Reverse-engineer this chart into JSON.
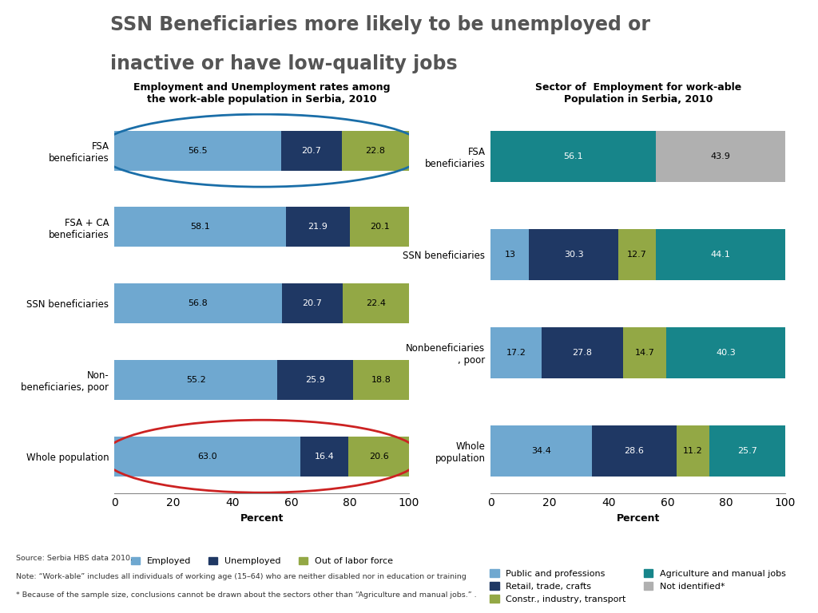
{
  "title_line1": "SSN Beneficiaries more likely to be unemployed or",
  "title_line2": "inactive or have low-quality jobs",
  "left_chart": {
    "title": "Employment and Unemployment rates among\nthe work-able population in Serbia, 2010",
    "categories": [
      "FSA\nbeneficiaries",
      "FSA + CA\nbeneficiaries",
      "SSN beneficiaries",
      "Non-\nbeneficiaries, poor",
      "Whole population"
    ],
    "employed": [
      56.5,
      58.1,
      56.8,
      55.2,
      63.0
    ],
    "unemployed": [
      20.7,
      21.9,
      20.7,
      25.9,
      16.4
    ],
    "out_of_labor": [
      22.8,
      20.1,
      22.4,
      18.8,
      20.6
    ],
    "color_employed": "#6fa8d0",
    "color_unemployed": "#1f3864",
    "color_out_of_labor": "#93a845",
    "xlabel": "Percent",
    "xlim": [
      0,
      100
    ],
    "xticks": [
      0,
      20,
      40,
      60,
      80,
      100
    ],
    "legend": [
      "Employed",
      "Unemployed",
      "Out of labor force"
    ],
    "red_circle_row": 4,
    "blue_circle_row": 0
  },
  "right_chart": {
    "title": "Sector of  Employment for work-able\nPopulation in Serbia, 2010",
    "categories": [
      "FSA\nbeneficiaries",
      "SSN beneficiaries",
      "Nonbeneficiaries\n, poor",
      "Whole\npopulation"
    ],
    "public": [
      0.0,
      13.0,
      17.2,
      34.4
    ],
    "retail": [
      0.0,
      30.3,
      27.8,
      28.6
    ],
    "constr": [
      0.0,
      12.7,
      14.7,
      11.2
    ],
    "agri": [
      56.1,
      44.1,
      40.3,
      25.7
    ],
    "not_id": [
      43.9,
      0.0,
      0.0,
      0.0
    ],
    "color_public": "#6fa8d0",
    "color_retail": "#1f3864",
    "color_constr": "#93a845",
    "color_agri": "#17858a",
    "color_not_id": "#b0b0b0",
    "xlabel": "Percent",
    "xlim": [
      0,
      100
    ],
    "xticks": [
      0,
      20,
      40,
      60,
      80,
      100
    ],
    "legend": [
      "Public and professions",
      "Retail, trade, crafts",
      "Constr., industry, transport",
      "Agriculture and manual jobs",
      "Not identified*"
    ]
  },
  "footer_lines": [
    "Source: Serbia HBS data 2010.",
    "Note: “Work-able” includes all individuals of working age (15–64) who are neither disabled nor in education or training",
    "* Because of the sample size, conclusions cannot be drawn about the sectors other than “Agriculture and manual jobs.” ."
  ],
  "bg_color": "#ffffff",
  "header_bg": "#c8c8c8",
  "globe_bg": "#9b1c1c",
  "header_text_color": "#555555"
}
